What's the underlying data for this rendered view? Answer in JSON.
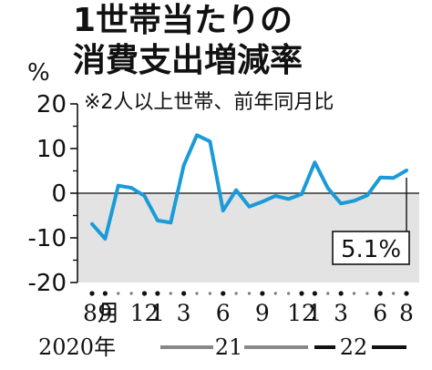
{
  "header": {
    "title_line1": "1世帯当たりの",
    "title_line2": "消費支出増減率",
    "note": "※2人以上世帯、前年同月比",
    "unit": "%"
  },
  "chart_data": {
    "type": "line",
    "x": [
      "2020-08",
      "2020-09",
      "2020-10",
      "2020-11",
      "2020-12",
      "2021-01",
      "2021-02",
      "2021-03",
      "2021-04",
      "2021-05",
      "2021-06",
      "2021-07",
      "2021-08",
      "2021-09",
      "2021-10",
      "2021-11",
      "2021-12",
      "2022-01",
      "2022-02",
      "2022-03",
      "2022-04",
      "2022-05",
      "2022-06",
      "2022-07",
      "2022-08"
    ],
    "values": [
      -6.9,
      -10.2,
      1.7,
      1.2,
      -0.6,
      -6.1,
      -6.6,
      6.2,
      13.0,
      11.6,
      -3.9,
      0.7,
      -3.0,
      -1.9,
      -0.6,
      -1.3,
      -0.2,
      6.9,
      1.1,
      -2.3,
      -1.7,
      -0.5,
      3.5,
      3.4,
      5.1
    ],
    "series_color": "#1a9bd7",
    "ylim": [
      -20,
      20
    ],
    "yticks": [
      "20",
      "10",
      "0",
      "-10",
      "-20"
    ],
    "xtick_labels": [
      {
        "x": "2020-08",
        "label": "8月"
      },
      {
        "x": "2020-09",
        "label": "9"
      },
      {
        "x": "2020-12",
        "label": "12"
      },
      {
        "x": "2021-01",
        "label": "1"
      },
      {
        "x": "2021-03",
        "label": "3"
      },
      {
        "x": "2021-06",
        "label": "6"
      },
      {
        "x": "2021-09",
        "label": "9"
      },
      {
        "x": "2021-12",
        "label": "12"
      },
      {
        "x": "2022-01",
        "label": "1"
      },
      {
        "x": "2022-03",
        "label": "3"
      },
      {
        "x": "2022-06",
        "label": "6"
      },
      {
        "x": "2022-08",
        "label": "8"
      }
    ],
    "year_labels": [
      {
        "year": "2020年"
      },
      {
        "year": "21"
      },
      {
        "year": "22"
      }
    ],
    "callout": {
      "x": "2022-08",
      "value": 5.1,
      "label": "5.1%"
    },
    "grid": false,
    "negative_area_shaded": true
  }
}
